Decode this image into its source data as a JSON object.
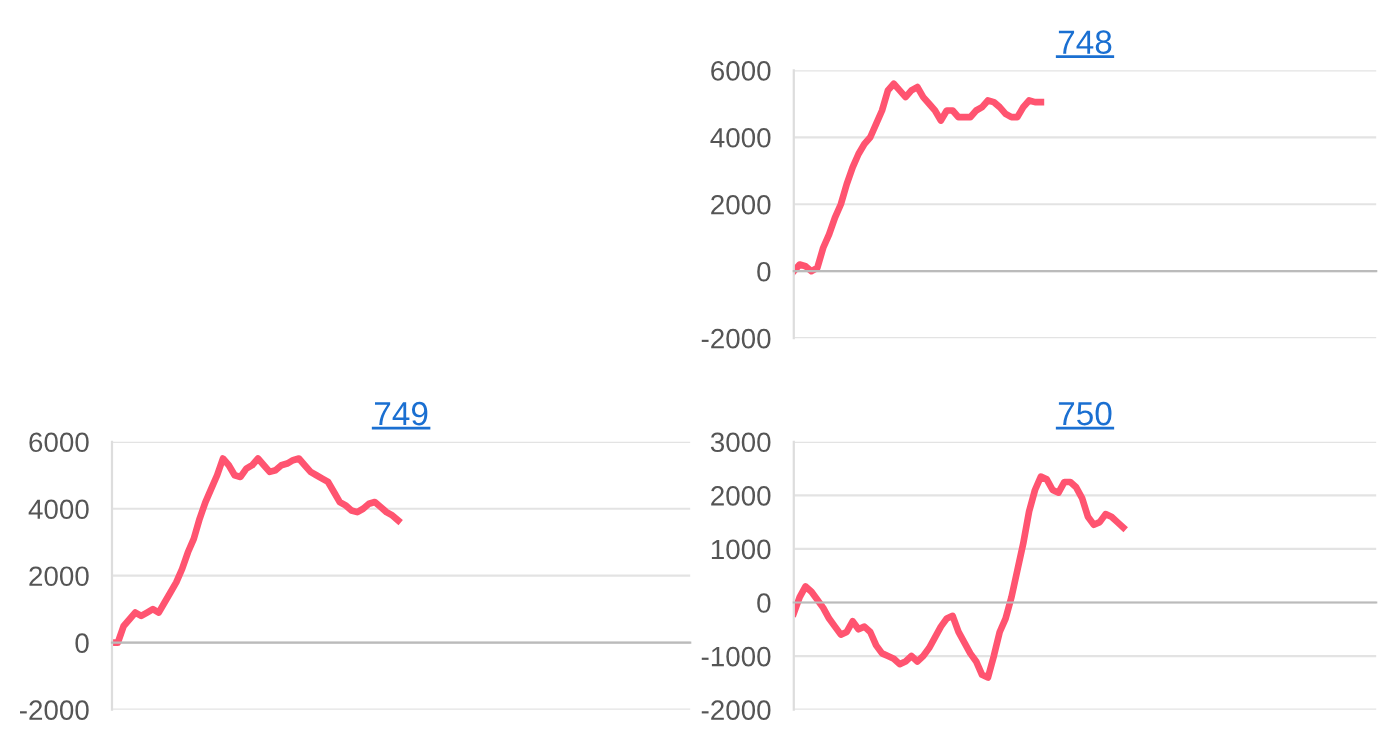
{
  "chart_data": [
    {
      "type": "line",
      "title": "748",
      "categories": [
        null,
        null,
        null,
        null,
        null,
        null,
        null,
        null,
        null,
        null,
        null,
        null,
        null,
        null,
        null,
        null,
        null,
        null,
        null,
        null,
        null,
        null,
        null,
        null,
        null,
        null,
        null,
        null,
        null,
        null,
        null,
        null,
        null,
        null,
        null,
        null,
        null,
        null,
        null,
        null,
        null,
        null,
        null,
        null,
        null,
        null,
        null,
        null,
        null,
        null,
        null,
        null,
        null,
        null,
        null,
        null,
        null,
        null,
        null,
        null,
        null,
        null,
        null,
        null,
        null,
        null,
        null,
        null,
        null,
        null,
        null,
        null,
        null,
        null,
        null,
        null,
        null,
        null,
        null,
        null,
        null,
        null,
        null,
        null,
        null,
        null,
        null,
        null,
        null,
        null,
        null,
        null,
        null,
        null,
        null,
        null,
        null,
        null,
        null,
        null
      ],
      "series": [
        {
          "color": "#ff5470",
          "values": [
            0,
            200,
            150,
            0,
            100,
            700,
            1100,
            1600,
            2000,
            2600,
            3100,
            3500,
            3800,
            4000,
            4400,
            4800,
            5400,
            5600,
            5400,
            5200,
            5400,
            5500,
            5200,
            5000,
            4800,
            4500,
            4800,
            4800,
            4600,
            4600,
            4600,
            4800,
            4900,
            5100,
            5050,
            4900,
            4700,
            4600,
            4600,
            4900,
            5100,
            5050,
            5050,
            null,
            null,
            null,
            null,
            null,
            null,
            null,
            null,
            null,
            null,
            null,
            null,
            null,
            null,
            null,
            null,
            null,
            null,
            null,
            null,
            null,
            null,
            null,
            null,
            null,
            null,
            null,
            null,
            null,
            null,
            null,
            null,
            null,
            null,
            null,
            null,
            null,
            null,
            null,
            null,
            null,
            null,
            null,
            null,
            null,
            null,
            null,
            null,
            null,
            null,
            null,
            null,
            null,
            null,
            null,
            null,
            null
          ]
        }
      ],
      "ylim": [
        -2000,
        6000
      ],
      "yticks": [
        -2000,
        0,
        2000,
        4000,
        6000
      ],
      "grid": "y",
      "legend": false,
      "tick_labels": "y",
      "line_style": "solid",
      "marker": "none"
    },
    {
      "type": "line",
      "title": "749",
      "categories": [
        null,
        null,
        null,
        null,
        null,
        null,
        null,
        null,
        null,
        null,
        null,
        null,
        null,
        null,
        null,
        null,
        null,
        null,
        null,
        null,
        null,
        null,
        null,
        null,
        null,
        null,
        null,
        null,
        null,
        null,
        null,
        null,
        null,
        null,
        null,
        null,
        null,
        null,
        null,
        null,
        null,
        null,
        null,
        null,
        null,
        null,
        null,
        null,
        null,
        null,
        null,
        null,
        null,
        null,
        null,
        null,
        null,
        null,
        null,
        null,
        null,
        null,
        null,
        null,
        null,
        null,
        null,
        null,
        null,
        null,
        null,
        null,
        null,
        null,
        null,
        null,
        null,
        null,
        null,
        null,
        null,
        null,
        null,
        null,
        null,
        null,
        null,
        null,
        null,
        null,
        null,
        null,
        null,
        null,
        null,
        null,
        null,
        null,
        null,
        null
      ],
      "series": [
        {
          "color": "#ff5470",
          "values": [
            0,
            0,
            500,
            700,
            900,
            800,
            900,
            1000,
            900,
            1200,
            1500,
            1800,
            2200,
            2700,
            3100,
            3700,
            4200,
            4600,
            5000,
            5500,
            5300,
            5000,
            4950,
            5200,
            5300,
            5500,
            5300,
            5100,
            5150,
            5300,
            5350,
            5450,
            5500,
            5300,
            5100,
            5000,
            4900,
            4800,
            4500,
            4200,
            4100,
            3950,
            3900,
            4000,
            4150,
            4200,
            4050,
            3900,
            3800,
            3650,
            null,
            null,
            null,
            null,
            null,
            null,
            null,
            null,
            null,
            null,
            null,
            null,
            null,
            null,
            null,
            null,
            null,
            null,
            null,
            null,
            null,
            null,
            null,
            null,
            null,
            null,
            null,
            null,
            null,
            null,
            null,
            null,
            null,
            null,
            null,
            null,
            null,
            null,
            null,
            null,
            null,
            null,
            null,
            null,
            null,
            null,
            null,
            null,
            null,
            null
          ]
        }
      ],
      "ylim": [
        -2000,
        6000
      ],
      "yticks": [
        -2000,
        0,
        2000,
        4000,
        6000
      ],
      "grid": "y",
      "legend": false,
      "tick_labels": "y",
      "line_style": "solid",
      "marker": "none"
    },
    {
      "type": "line",
      "title": "750",
      "categories": [
        null,
        null,
        null,
        null,
        null,
        null,
        null,
        null,
        null,
        null,
        null,
        null,
        null,
        null,
        null,
        null,
        null,
        null,
        null,
        null,
        null,
        null,
        null,
        null,
        null,
        null,
        null,
        null,
        null,
        null,
        null,
        null,
        null,
        null,
        null,
        null,
        null,
        null,
        null,
        null,
        null,
        null,
        null,
        null,
        null,
        null,
        null,
        null,
        null,
        null,
        null,
        null,
        null,
        null,
        null,
        null,
        null,
        null,
        null,
        null,
        null,
        null,
        null,
        null,
        null,
        null,
        null,
        null,
        null,
        null,
        null,
        null,
        null,
        null,
        null,
        null,
        null,
        null,
        null,
        null,
        null,
        null,
        null,
        null,
        null,
        null,
        null,
        null,
        null,
        null,
        null,
        null,
        null,
        null,
        null,
        null,
        null,
        null,
        null,
        null
      ],
      "series": [
        {
          "color": "#ff5470",
          "values": [
            -200,
            100,
            300,
            200,
            50,
            -100,
            -300,
            -450,
            -600,
            -550,
            -350,
            -500,
            -450,
            -550,
            -800,
            -950,
            -1000,
            -1050,
            -1150,
            -1100,
            -1000,
            -1100,
            -1000,
            -850,
            -650,
            -450,
            -300,
            -250,
            -550,
            -750,
            -950,
            -1100,
            -1350,
            -1400,
            -1000,
            -550,
            -300,
            100,
            600,
            1100,
            1700,
            2100,
            2350,
            2300,
            2100,
            2050,
            2250,
            2250,
            2150,
            1950,
            1600,
            1450,
            1500,
            1650,
            1600,
            1500,
            1400,
            null,
            null,
            null,
            null,
            null,
            null,
            null,
            null,
            null,
            null,
            null,
            null,
            null,
            null,
            null,
            null,
            null,
            null,
            null,
            null,
            null,
            null,
            null,
            null,
            null,
            null,
            null,
            null,
            null,
            null,
            null,
            null,
            null,
            null,
            null,
            null,
            null,
            null,
            null,
            null,
            null,
            null,
            null
          ]
        }
      ],
      "ylim": [
        -2000,
        3000
      ],
      "yticks": [
        -2000,
        -1000,
        0,
        1000,
        2000,
        3000
      ],
      "grid": "y",
      "legend": false,
      "tick_labels": "y",
      "line_style": "solid",
      "marker": "none"
    }
  ]
}
